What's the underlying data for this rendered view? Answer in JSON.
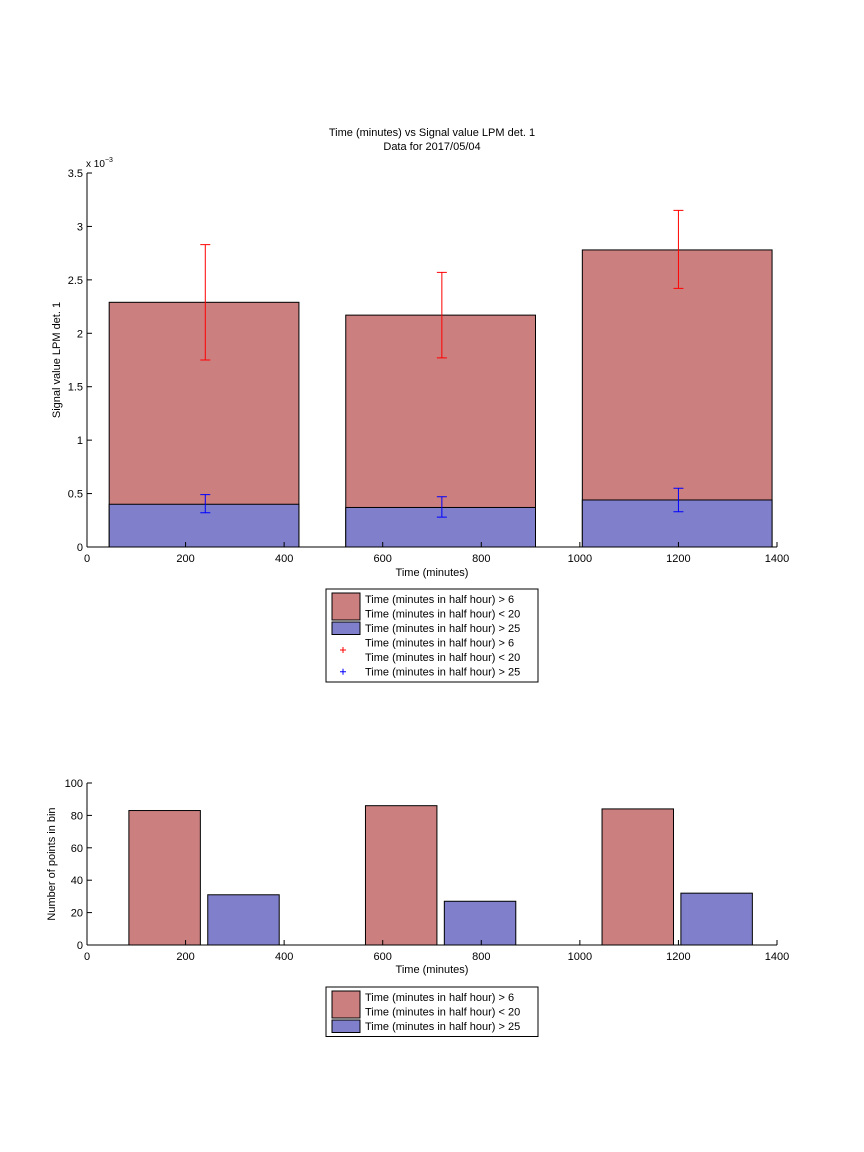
{
  "chart_data": [
    {
      "type": "bar",
      "title": "Time (minutes) vs Signal value LPM det. 1",
      "subtitle": "Data for 2017/05/04",
      "xlabel": "Time (minutes)",
      "ylabel": "Signal value LPM det. 1",
      "exponent_base": "x 10",
      "exponent_power": "−3",
      "xlim": [
        0,
        1400
      ],
      "ylim": [
        0,
        3.5
      ],
      "xticks": [
        0,
        200,
        400,
        600,
        800,
        1000,
        1200,
        1400
      ],
      "xtick_labels": [
        "0",
        "200",
        "400",
        "600",
        "800",
        "1000",
        "1200",
        "1400"
      ],
      "yticks": [
        0,
        0.5,
        1,
        1.5,
        2,
        2.5,
        3,
        3.5
      ],
      "ytick_labels": [
        "0",
        "0.5",
        "1",
        "1.5",
        "2",
        "2.5",
        "3",
        "3.5"
      ],
      "bar_edges": [
        [
          45,
          430
        ],
        [
          525,
          910
        ],
        [
          1005,
          1390
        ]
      ],
      "x": [
        240,
        720,
        1200
      ],
      "series": [
        {
          "name": "Time (minutes in half hour) > 6\nTime (minutes in half hour) < 20",
          "color": "#cc7f7f",
          "errcolor": "#ff0000",
          "values": [
            2.29,
            2.17,
            2.78
          ],
          "err_low": [
            1.75,
            1.77,
            2.42
          ],
          "err_high": [
            2.83,
            2.57,
            3.15
          ]
        },
        {
          "name": "Time (minutes in half hour) > 25",
          "color": "#7f7fcc",
          "errcolor": "#0000ff",
          "values": [
            0.4,
            0.37,
            0.44
          ],
          "err_low": [
            0.32,
            0.28,
            0.33
          ],
          "err_high": [
            0.49,
            0.47,
            0.55
          ]
        }
      ],
      "legend": {
        "position": "below",
        "entries": [
          {
            "kind": "patch",
            "color": "#cc7f7f",
            "lines": [
              "Time (minutes in half hour) > 6",
              "Time (minutes in half hour) < 20"
            ]
          },
          {
            "kind": "patch",
            "color": "#7f7fcc",
            "lines": [
              "Time (minutes in half hour) > 25"
            ]
          },
          {
            "kind": "marker",
            "color": "#ff0000",
            "lines": [
              "Time (minutes in half hour) > 6",
              "Time (minutes in half hour) < 20"
            ]
          },
          {
            "kind": "marker",
            "color": "#0000ff",
            "lines": [
              "Time (minutes in half hour) > 25"
            ]
          }
        ]
      }
    },
    {
      "type": "bar",
      "title": "",
      "xlabel": "Time (minutes)",
      "ylabel": "Number of points in bin",
      "xlim": [
        0,
        1400
      ],
      "ylim": [
        0,
        100
      ],
      "xticks": [
        0,
        200,
        400,
        600,
        800,
        1000,
        1200,
        1400
      ],
      "xtick_labels": [
        "0",
        "200",
        "400",
        "600",
        "800",
        "1000",
        "1200",
        "1400"
      ],
      "yticks": [
        0,
        20,
        40,
        60,
        80,
        100
      ],
      "ytick_labels": [
        "0",
        "20",
        "40",
        "60",
        "80",
        "100"
      ],
      "series": [
        {
          "name": "Time (minutes in half hour) > 6\nTime (minutes in half hour) < 20",
          "color": "#cc7f7f",
          "bar_edges": [
            [
              85,
              230
            ],
            [
              565,
              710
            ],
            [
              1045,
              1190
            ]
          ],
          "values": [
            83,
            86,
            84
          ]
        },
        {
          "name": "Time (minutes in half hour) > 25",
          "color": "#7f7fcc",
          "bar_edges": [
            [
              245,
              390
            ],
            [
              725,
              870
            ],
            [
              1205,
              1350
            ]
          ],
          "values": [
            31,
            27,
            32
          ]
        }
      ],
      "legend": {
        "position": "below",
        "entries": [
          {
            "kind": "patch",
            "color": "#cc7f7f",
            "lines": [
              "Time (minutes in half hour) > 6",
              "Time (minutes in half hour) < 20"
            ]
          },
          {
            "kind": "patch",
            "color": "#7f7fcc",
            "lines": [
              "Time (minutes in half hour) > 25"
            ]
          }
        ]
      }
    }
  ]
}
